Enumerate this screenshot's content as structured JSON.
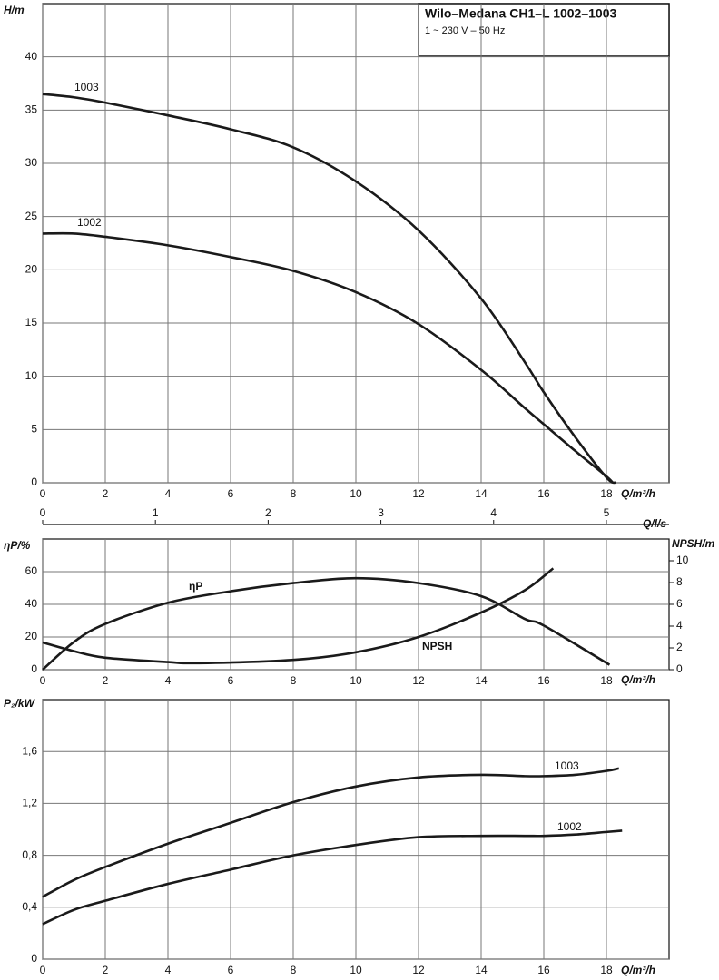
{
  "chart_data": [
    {
      "type": "line",
      "title": "Wilo–Medana CH1–L 1002–1003",
      "subtitle": "1 ~ 230 V – 50 Hz",
      "ylabel": "H/m",
      "xlabel": "Q/m³/h",
      "x2label": "Q/l/s",
      "xlim": [
        0,
        20
      ],
      "xticks": [
        0,
        2,
        4,
        6,
        8,
        10,
        12,
        14,
        16,
        18
      ],
      "x2lim": [
        0,
        5.556
      ],
      "x2ticks": [
        0,
        1,
        2,
        3,
        4,
        5
      ],
      "ylim": [
        0,
        45
      ],
      "yticks": [
        0,
        5,
        10,
        15,
        20,
        25,
        30,
        35,
        40
      ],
      "grid": true,
      "series": [
        {
          "name": "1003",
          "color": "#1a1a1a",
          "x": [
            0,
            1,
            2,
            4,
            6,
            8,
            10,
            12,
            14,
            15.4,
            16,
            17,
            18,
            18.3
          ],
          "values": [
            36.5,
            36.2,
            35.7,
            34.5,
            33.2,
            31.5,
            28.3,
            23.7,
            17.3,
            11.3,
            8.5,
            4.3,
            0.5,
            0
          ]
        },
        {
          "name": "1002",
          "color": "#1a1a1a",
          "x": [
            0,
            1,
            2,
            4,
            6,
            8,
            10,
            12,
            14,
            15.4,
            16,
            17,
            18,
            18.2
          ],
          "values": [
            23.4,
            23.4,
            23.1,
            22.3,
            21.2,
            19.9,
            17.9,
            14.9,
            10.6,
            7.0,
            5.5,
            3.0,
            0.6,
            0
          ]
        }
      ]
    },
    {
      "type": "line",
      "ylabel": "ηP/%",
      "y2label": "NPSH/m",
      "xlabel": "Q/m³/h",
      "xlim": [
        0,
        20
      ],
      "xticks": [
        0,
        2,
        4,
        6,
        8,
        10,
        12,
        14,
        16,
        18
      ],
      "ylim": [
        0,
        80
      ],
      "yticks": [
        0,
        20,
        40,
        60
      ],
      "y2lim": [
        0,
        12
      ],
      "y2ticks": [
        0,
        2,
        4,
        6,
        8,
        10
      ],
      "grid": true,
      "series": [
        {
          "name": "ηP",
          "color": "#1a1a1a",
          "x": [
            0,
            1,
            2,
            4,
            6,
            8,
            10,
            12,
            14,
            15.4,
            16,
            18.1
          ],
          "values": [
            0,
            17,
            28,
            41,
            48,
            53,
            56,
            53,
            45,
            31,
            27,
            3
          ]
        },
        {
          "name": "NPSH",
          "color": "#1a1a1a",
          "axis": "y2",
          "x": [
            0,
            1,
            2,
            4,
            5,
            8,
            10,
            12,
            14,
            15.4,
            16.3
          ],
          "values": [
            2.5,
            1.7,
            1.1,
            0.7,
            0.6,
            0.9,
            1.6,
            3.0,
            5.25,
            7.3,
            9.3
          ]
        }
      ]
    },
    {
      "type": "line",
      "ylabel": "P₂/kW",
      "xlabel": "Q/m³/h",
      "xlim": [
        0,
        20
      ],
      "xticks": [
        0,
        2,
        4,
        6,
        8,
        10,
        12,
        14,
        16,
        18
      ],
      "ylim": [
        0,
        2
      ],
      "yticks": [
        0,
        {
          "value": 0.4,
          "label": "0,4"
        },
        {
          "value": 0.8,
          "label": "0,8"
        },
        {
          "value": 1.2,
          "label": "1,2"
        },
        {
          "value": 1.6,
          "label": "1,6"
        }
      ],
      "grid": true,
      "series": [
        {
          "name": "1003",
          "color": "#1a1a1a",
          "x": [
            0,
            1,
            2,
            4,
            6,
            8,
            10,
            12,
            14,
            15.4,
            16,
            17,
            18,
            18.4
          ],
          "values": [
            0.48,
            0.61,
            0.71,
            0.89,
            1.05,
            1.21,
            1.33,
            1.4,
            1.42,
            1.41,
            1.41,
            1.42,
            1.45,
            1.47
          ]
        },
        {
          "name": "1002",
          "color": "#1a1a1a",
          "x": [
            0,
            1,
            2,
            4,
            6,
            8,
            10,
            12,
            14,
            15.4,
            16,
            17,
            18,
            18.5
          ],
          "values": [
            0.27,
            0.38,
            0.45,
            0.58,
            0.69,
            0.8,
            0.88,
            0.94,
            0.95,
            0.95,
            0.95,
            0.96,
            0.98,
            0.99
          ]
        }
      ]
    }
  ]
}
